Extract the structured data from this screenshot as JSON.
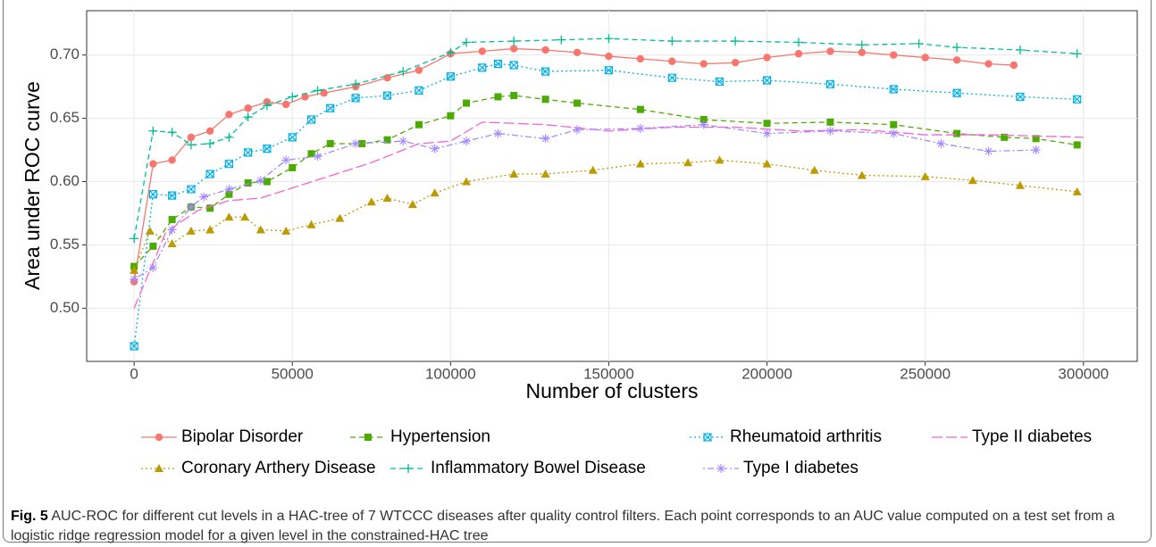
{
  "chart_data": {
    "type": "line",
    "xlabel": "Number of clusters",
    "ylabel": "Area under ROC curve",
    "xlim": [
      -15000,
      317000
    ],
    "ylim": [
      0.458,
      0.735
    ],
    "xticks": [
      0,
      50000,
      100000,
      150000,
      200000,
      250000,
      300000
    ],
    "yticks": [
      {
        "value": 0.5,
        "label": "0.50"
      },
      0.55,
      {
        "value": 0.6,
        "label": "0.60"
      },
      0.65,
      {
        "value": 0.7,
        "label": "0.70"
      }
    ],
    "grid": true,
    "legend": "bottom",
    "series": [
      {
        "name": "Bipolar Disorder",
        "color": "#F8766D",
        "marker": "circle",
        "dash": "solid",
        "x": [
          0,
          6000,
          12000,
          18000,
          24000,
          30000,
          36000,
          42000,
          48000,
          54000,
          60000,
          70000,
          80000,
          90000,
          100000,
          110000,
          120000,
          130000,
          140000,
          150000,
          160000,
          170000,
          180000,
          190000,
          200000,
          210000,
          220000,
          230000,
          240000,
          250000,
          260000,
          270000,
          278000
        ],
        "values": [
          0.521,
          0.614,
          0.617,
          0.635,
          0.64,
          0.653,
          0.658,
          0.663,
          0.661,
          0.667,
          0.67,
          0.675,
          0.682,
          0.688,
          0.701,
          0.703,
          0.705,
          0.704,
          0.702,
          0.699,
          0.697,
          0.695,
          0.693,
          0.694,
          0.698,
          0.701,
          0.703,
          0.702,
          0.7,
          0.698,
          0.696,
          0.693,
          0.692
        ]
      },
      {
        "name": "Hypertension",
        "color": "#4DAA00",
        "marker": "square",
        "dash": "dashed",
        "x": [
          0,
          6000,
          12000,
          18000,
          24000,
          30000,
          36000,
          42000,
          50000,
          56000,
          62000,
          72000,
          80000,
          90000,
          100000,
          105000,
          115000,
          120000,
          130000,
          140000,
          160000,
          180000,
          200000,
          220000,
          240000,
          260000,
          275000,
          285000,
          298000
        ],
        "values": [
          0.533,
          0.549,
          0.57,
          0.58,
          0.579,
          0.59,
          0.599,
          0.6,
          0.611,
          0.622,
          0.63,
          0.63,
          0.633,
          0.645,
          0.652,
          0.662,
          0.667,
          0.668,
          0.665,
          0.662,
          0.657,
          0.649,
          0.646,
          0.647,
          0.645,
          0.638,
          0.635,
          0.634,
          0.629
        ]
      },
      {
        "name": "Rheumatoid arthritis",
        "color": "#00B0E6",
        "marker": "squarex",
        "dash": "dotted",
        "x": [
          0,
          6000,
          12000,
          18000,
          24000,
          30000,
          36000,
          42000,
          50000,
          56000,
          62000,
          70000,
          80000,
          90000,
          100000,
          110000,
          115000,
          120000,
          130000,
          150000,
          170000,
          185000,
          200000,
          220000,
          240000,
          260000,
          280000,
          298000
        ],
        "values": [
          0.47,
          0.59,
          0.589,
          0.594,
          0.606,
          0.614,
          0.623,
          0.626,
          0.635,
          0.649,
          0.658,
          0.666,
          0.668,
          0.672,
          0.683,
          0.69,
          0.693,
          0.692,
          0.687,
          0.688,
          0.682,
          0.679,
          0.68,
          0.677,
          0.673,
          0.67,
          0.667,
          0.665
        ]
      },
      {
        "name": "Type II diabetes",
        "color": "#F464D6",
        "marker": "none",
        "dash": "longdash",
        "x": [
          0,
          10000,
          20000,
          30000,
          40000,
          50000,
          60000,
          75000,
          90000,
          100000,
          110000,
          120000,
          130000,
          150000,
          170000,
          190000,
          210000,
          230000,
          250000,
          270000,
          300000
        ],
        "values": [
          0.5,
          0.56,
          0.577,
          0.585,
          0.587,
          0.595,
          0.603,
          0.615,
          0.63,
          0.632,
          0.647,
          0.646,
          0.645,
          0.64,
          0.643,
          0.643,
          0.64,
          0.641,
          0.637,
          0.637,
          0.635
        ]
      },
      {
        "name": "Coronary Arthery Disease",
        "color": "#BC9A00",
        "marker": "triangle",
        "dash": "dotted",
        "x": [
          0,
          5000,
          12000,
          18000,
          24000,
          30000,
          35000,
          40000,
          48000,
          56000,
          65000,
          75000,
          80000,
          88000,
          95000,
          105000,
          120000,
          130000,
          145000,
          160000,
          175000,
          185000,
          200000,
          215000,
          230000,
          250000,
          265000,
          280000,
          298000
        ],
        "values": [
          0.53,
          0.561,
          0.551,
          0.561,
          0.562,
          0.572,
          0.572,
          0.562,
          0.561,
          0.566,
          0.571,
          0.584,
          0.587,
          0.582,
          0.591,
          0.6,
          0.606,
          0.606,
          0.609,
          0.614,
          0.615,
          0.617,
          0.614,
          0.609,
          0.605,
          0.604,
          0.601,
          0.597,
          0.592
        ]
      },
      {
        "name": "Inflammatory Bowel Disease",
        "color": "#00BE96",
        "marker": "plus",
        "dash": "dashed",
        "x": [
          0,
          6000,
          12000,
          18000,
          24000,
          30000,
          36000,
          42000,
          50000,
          58000,
          70000,
          85000,
          100000,
          105000,
          120000,
          135000,
          150000,
          170000,
          190000,
          210000,
          230000,
          248000,
          260000,
          280000,
          298000
        ],
        "values": [
          0.555,
          0.64,
          0.639,
          0.629,
          0.63,
          0.635,
          0.651,
          0.66,
          0.667,
          0.672,
          0.677,
          0.687,
          0.702,
          0.71,
          0.711,
          0.712,
          0.713,
          0.711,
          0.711,
          0.71,
          0.708,
          0.709,
          0.706,
          0.704,
          0.701
        ]
      },
      {
        "name": "Type I diabetes",
        "color": "#A58AFF",
        "marker": "asterisk",
        "dash": "dotdash",
        "x": [
          0,
          6000,
          12000,
          18000,
          22000,
          30000,
          40000,
          48000,
          58000,
          70000,
          85000,
          95000,
          105000,
          115000,
          130000,
          140000,
          160000,
          180000,
          200000,
          220000,
          240000,
          255000,
          270000,
          285000
        ],
        "values": [
          0.523,
          0.532,
          0.562,
          0.58,
          0.588,
          0.594,
          0.601,
          0.617,
          0.62,
          0.63,
          0.632,
          0.626,
          0.632,
          0.638,
          0.634,
          0.641,
          0.642,
          0.645,
          0.638,
          0.64,
          0.638,
          0.63,
          0.624,
          0.625
        ]
      }
    ]
  },
  "caption": {
    "label": "Fig. 5",
    "text": "AUC-ROC for different cut levels in a HAC-tree of 7 WTCCC diseases after quality control filters. Each point corresponds to an AUC value computed on a test set from a logistic ridge regression model for a given level in the constrained-HAC tree"
  }
}
